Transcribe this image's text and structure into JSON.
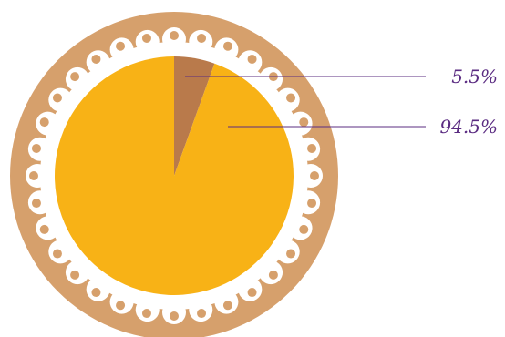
{
  "chart_data": {
    "type": "pie",
    "slices": [
      {
        "label": "5.5%",
        "value": 5.5,
        "color": "#B97A4B"
      },
      {
        "label": "94.5%",
        "value": 94.5,
        "color": "#F8B216"
      }
    ]
  },
  "colors": {
    "outer_ring": "#D6A06C",
    "lace": "#FFFFFF",
    "dots": "#D6A06C",
    "leader_lines": "#5B2C82",
    "label_text": "#5B2C82"
  }
}
